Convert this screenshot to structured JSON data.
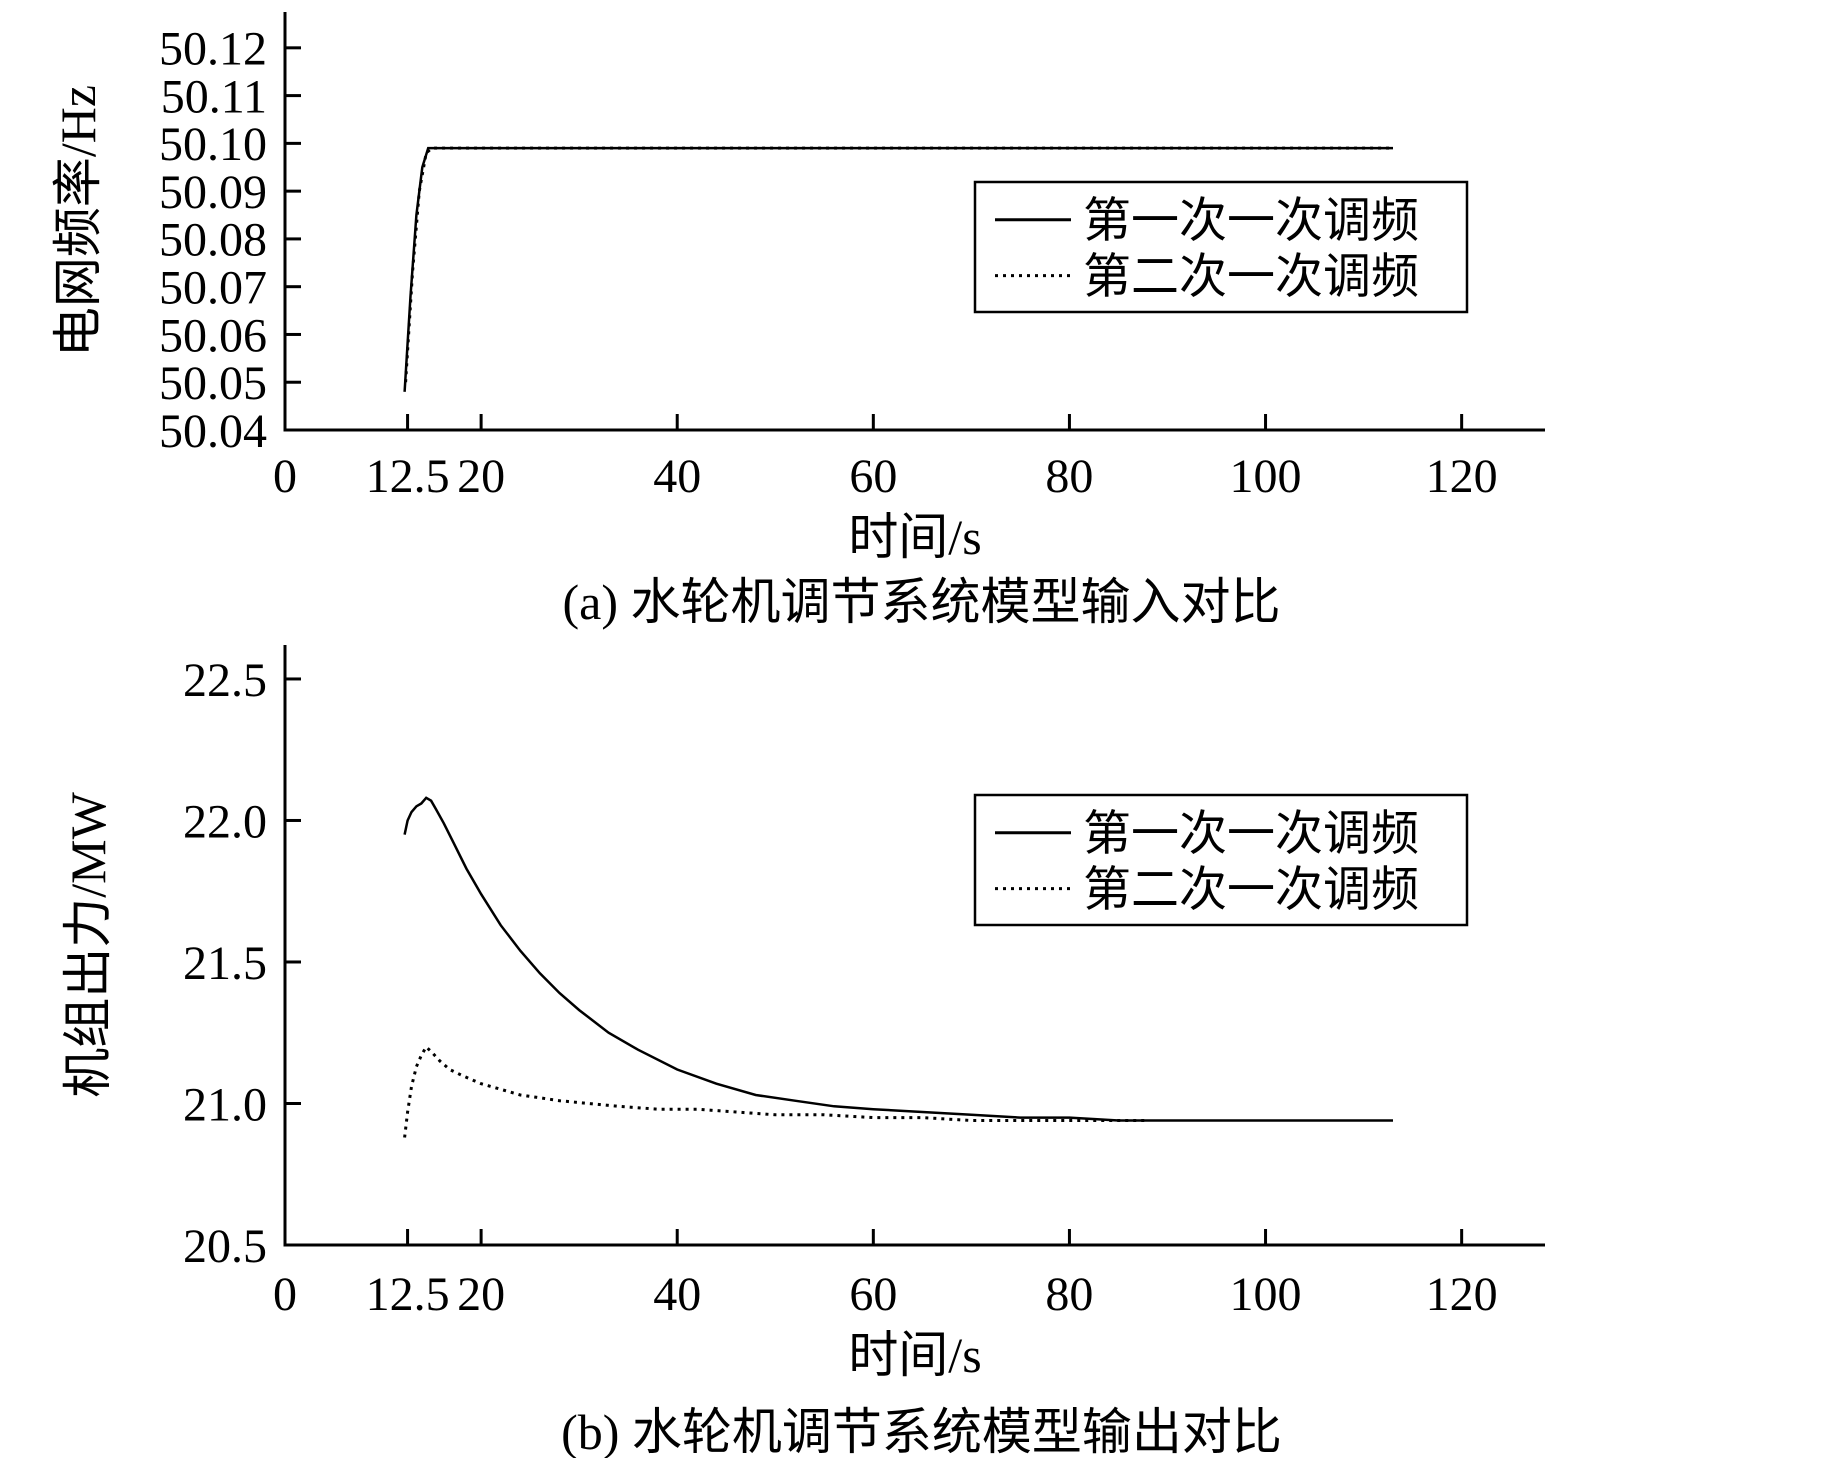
{
  "chart_data": [
    {
      "id": "a",
      "type": "line",
      "title": "",
      "caption": "(a) 水轮机调节系统模型输入对比",
      "xlabel": "时间/s",
      "ylabel": "电网频率/Hz",
      "xlim": [
        0,
        128.5
      ],
      "ylim": [
        50.04,
        50.1275
      ],
      "grid": false,
      "xticks": [
        0,
        12.5,
        20,
        40,
        60,
        80,
        100,
        120
      ],
      "xtick_labels": [
        "0",
        "12.5",
        "20",
        "40",
        "60",
        "80",
        "100",
        "120"
      ],
      "yticks": [
        50.04,
        50.05,
        50.06,
        50.07,
        50.08,
        50.09,
        50.1,
        50.11,
        50.12
      ],
      "ytick_labels": [
        "50.04",
        "50.05",
        "50.06",
        "50.07",
        "50.08",
        "50.09",
        "50.10",
        "50.11",
        "50.12"
      ],
      "legend": {
        "position": "upper right",
        "entries": [
          "第一次一次调频",
          "第二次一次调频"
        ]
      },
      "series": [
        {
          "name": "第一次一次调频",
          "style": "solid",
          "points": [
            [
              12.2,
              50.048
            ],
            [
              12.8,
              50.068
            ],
            [
              13.4,
              50.085
            ],
            [
              14.0,
              50.095
            ],
            [
              14.6,
              50.099
            ],
            [
              113,
              50.099
            ]
          ]
        },
        {
          "name": "第二次一次调频",
          "style": "dotted",
          "points": [
            [
              12.3,
              50.05
            ],
            [
              13.0,
              50.073
            ],
            [
              13.7,
              50.09
            ],
            [
              14.4,
              50.098
            ],
            [
              15.0,
              50.099
            ],
            [
              113,
              50.099
            ]
          ]
        }
      ]
    },
    {
      "id": "b",
      "type": "line",
      "title": "",
      "caption": "(b) 水轮机调节系统模型输出对比",
      "xlabel": "时间/s",
      "ylabel": "机组出力/MW",
      "xlim": [
        0,
        128.5
      ],
      "ylim": [
        20.5,
        22.62
      ],
      "grid": false,
      "xticks": [
        0,
        12.5,
        20,
        40,
        60,
        80,
        100,
        120
      ],
      "xtick_labels": [
        "0",
        "12.5",
        "20",
        "40",
        "60",
        "80",
        "100",
        "120"
      ],
      "yticks": [
        20.5,
        21.0,
        21.5,
        22.0,
        22.5
      ],
      "ytick_labels": [
        "20.5",
        "21.0",
        "21.5",
        "22.0",
        "22.5"
      ],
      "legend": {
        "position": "upper right",
        "entries": [
          "第一次一次调频",
          "第二次一次调频"
        ]
      },
      "series": [
        {
          "name": "第一次一次调频",
          "style": "solid",
          "points": [
            [
              12.2,
              21.95
            ],
            [
              12.5,
              22.0
            ],
            [
              12.9,
              22.03
            ],
            [
              13.4,
              22.05
            ],
            [
              13.9,
              22.06
            ],
            [
              14.4,
              22.08
            ],
            [
              14.9,
              22.07
            ],
            [
              15.4,
              22.04
            ],
            [
              16.2,
              21.99
            ],
            [
              17.2,
              21.92
            ],
            [
              18.5,
              21.83
            ],
            [
              20,
              21.74
            ],
            [
              22,
              21.63
            ],
            [
              24,
              21.54
            ],
            [
              26,
              21.46
            ],
            [
              28,
              21.39
            ],
            [
              30,
              21.33
            ],
            [
              33,
              21.25
            ],
            [
              36,
              21.19
            ],
            [
              40,
              21.12
            ],
            [
              44,
              21.07
            ],
            [
              48,
              21.03
            ],
            [
              52,
              21.01
            ],
            [
              56,
              20.99
            ],
            [
              60,
              20.98
            ],
            [
              65,
              20.97
            ],
            [
              70,
              20.96
            ],
            [
              75,
              20.95
            ],
            [
              80,
              20.95
            ],
            [
              85,
              20.94
            ],
            [
              90,
              20.94
            ],
            [
              113,
              20.94
            ]
          ]
        },
        {
          "name": "第二次一次调频",
          "style": "dotted",
          "points": [
            [
              12.2,
              20.88
            ],
            [
              12.5,
              20.97
            ],
            [
              12.9,
              21.06
            ],
            [
              13.4,
              21.13
            ],
            [
              13.9,
              21.17
            ],
            [
              14.4,
              21.2
            ],
            [
              15.0,
              21.18
            ],
            [
              15.8,
              21.15
            ],
            [
              16.8,
              21.12
            ],
            [
              18,
              21.1
            ],
            [
              20,
              21.07
            ],
            [
              22,
              21.05
            ],
            [
              24,
              21.03
            ],
            [
              26,
              21.02
            ],
            [
              28,
              21.01
            ],
            [
              31,
              21.0
            ],
            [
              34,
              20.99
            ],
            [
              38,
              20.98
            ],
            [
              42,
              20.98
            ],
            [
              46,
              20.97
            ],
            [
              50,
              20.96
            ],
            [
              55,
              20.96
            ],
            [
              60,
              20.95
            ],
            [
              65,
              20.95
            ],
            [
              70,
              20.94
            ],
            [
              80,
              20.94
            ],
            [
              88,
              20.94
            ]
          ]
        }
      ]
    }
  ]
}
